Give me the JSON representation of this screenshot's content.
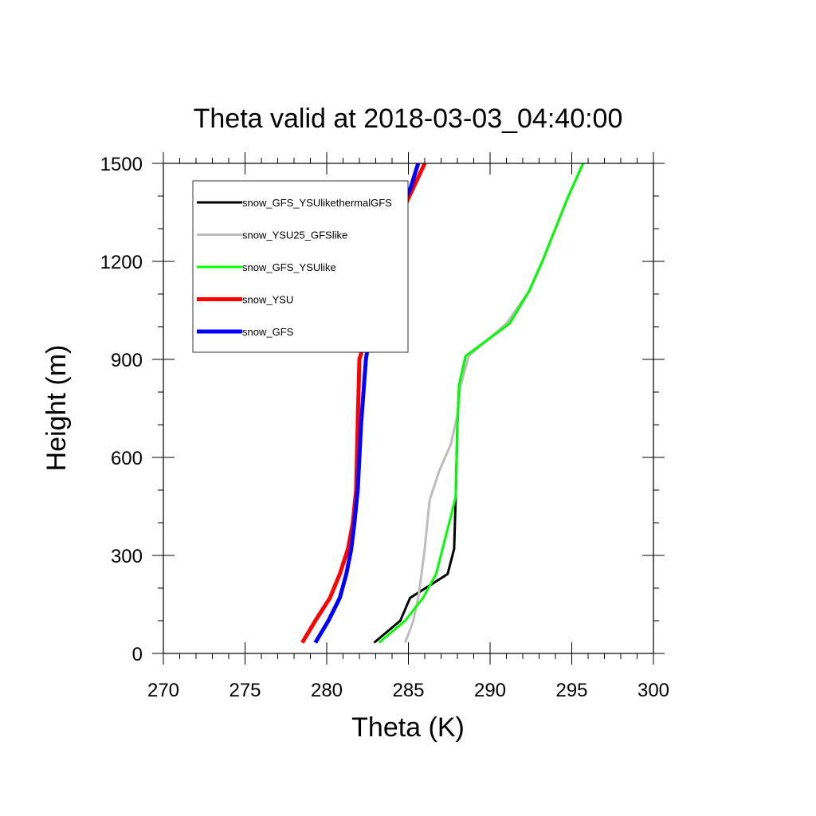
{
  "chart_data": {
    "type": "line",
    "title": "Theta valid at 2018-03-03_04:40:00",
    "xlabel": "Theta (K)",
    "ylabel": "Height (m)",
    "xlim": [
      270,
      300
    ],
    "ylim": [
      0,
      1500
    ],
    "xticks": [
      270,
      275,
      280,
      285,
      290,
      295,
      300
    ],
    "yticks": [
      0,
      300,
      600,
      900,
      1200,
      1500
    ],
    "grid": false,
    "legend_position": "top-left",
    "series": [
      {
        "name": "snow_GFS_YSUlikethermalGFS",
        "color": "#000000",
        "width": 3,
        "points": [
          [
            282.9,
            33
          ],
          [
            284.5,
            100
          ],
          [
            285.1,
            170
          ],
          [
            287.4,
            243
          ],
          [
            287.8,
            320
          ],
          [
            287.9,
            480
          ],
          [
            288.0,
            700
          ],
          [
            288.1,
            820
          ],
          [
            288.5,
            910
          ],
          [
            291.2,
            1010
          ],
          [
            292.4,
            1110
          ],
          [
            293.2,
            1200
          ],
          [
            294.0,
            1300
          ],
          [
            294.8,
            1400
          ],
          [
            295.7,
            1500
          ]
        ]
      },
      {
        "name": "snow_YSU25_GFSlike",
        "color": "#bdbdbd",
        "width": 3,
        "points": [
          [
            284.8,
            33
          ],
          [
            285.3,
            100
          ],
          [
            285.6,
            170
          ],
          [
            285.8,
            243
          ],
          [
            286.0,
            320
          ],
          [
            286.3,
            470
          ],
          [
            286.9,
            560
          ],
          [
            287.6,
            640
          ],
          [
            288.0,
            730
          ],
          [
            288.2,
            820
          ],
          [
            288.7,
            910
          ],
          [
            291.0,
            1010
          ],
          [
            292.4,
            1110
          ],
          [
            293.2,
            1200
          ],
          [
            294.0,
            1300
          ],
          [
            294.8,
            1400
          ],
          [
            295.7,
            1500
          ]
        ]
      },
      {
        "name": "snow_GFS_YSUlike",
        "color": "#00ff00",
        "width": 3,
        "points": [
          [
            283.2,
            33
          ],
          [
            284.8,
            100
          ],
          [
            285.9,
            170
          ],
          [
            286.7,
            243
          ],
          [
            287.5,
            400
          ],
          [
            287.9,
            480
          ],
          [
            288.0,
            700
          ],
          [
            288.1,
            820
          ],
          [
            288.5,
            910
          ],
          [
            291.2,
            1010
          ],
          [
            292.4,
            1110
          ],
          [
            293.2,
            1200
          ],
          [
            294.0,
            1300
          ],
          [
            294.8,
            1400
          ],
          [
            295.7,
            1500
          ]
        ]
      },
      {
        "name": "snow_YSU",
        "color": "#ff0000",
        "width": 5,
        "points": [
          [
            278.5,
            33
          ],
          [
            279.3,
            100
          ],
          [
            280.2,
            170
          ],
          [
            280.8,
            243
          ],
          [
            281.3,
            320
          ],
          [
            281.6,
            400
          ],
          [
            281.8,
            500
          ],
          [
            281.9,
            700
          ],
          [
            282.0,
            900
          ],
          [
            282.6,
            1000
          ],
          [
            282.9,
            1090
          ],
          [
            283.5,
            1200
          ],
          [
            284.6,
            1350
          ],
          [
            286.0,
            1500
          ]
        ]
      },
      {
        "name": "snow_GFS",
        "color": "#0000ff",
        "width": 5,
        "points": [
          [
            279.3,
            33
          ],
          [
            280.1,
            100
          ],
          [
            280.8,
            170
          ],
          [
            281.2,
            243
          ],
          [
            281.5,
            320
          ],
          [
            281.7,
            400
          ],
          [
            281.9,
            500
          ],
          [
            282.1,
            700
          ],
          [
            282.4,
            900
          ],
          [
            282.7,
            1000
          ],
          [
            282.9,
            1090
          ],
          [
            283.3,
            1200
          ],
          [
            283.8,
            1300
          ],
          [
            285.1,
            1420
          ],
          [
            285.6,
            1500
          ]
        ]
      }
    ]
  }
}
